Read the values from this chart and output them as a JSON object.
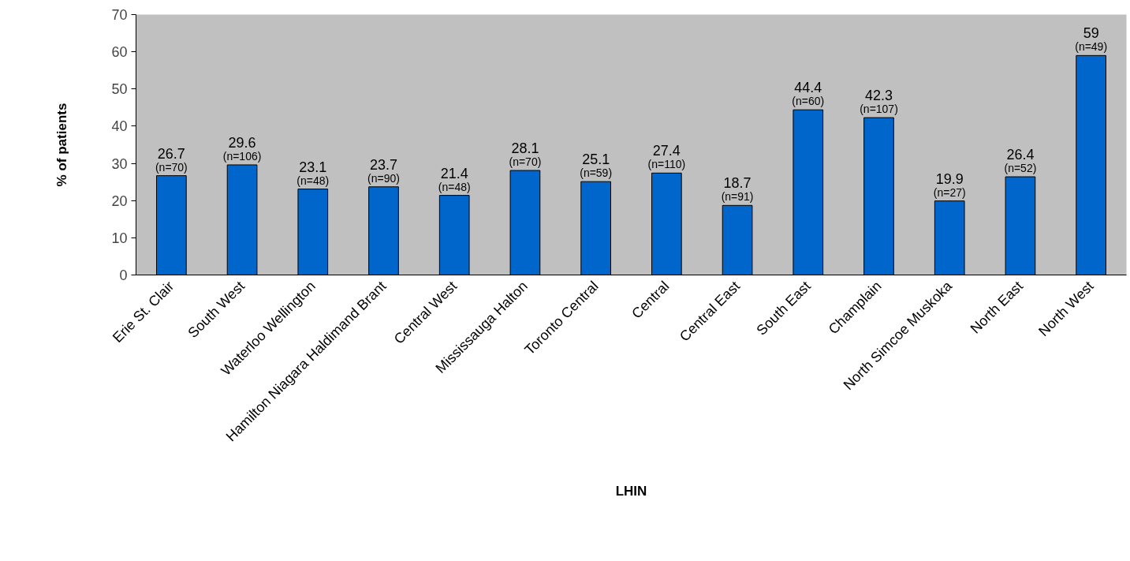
{
  "chart_data": {
    "type": "bar",
    "xlabel": "LHIN",
    "ylabel": "% of patients",
    "categories": [
      "Erie St. Clair",
      "South West",
      "Waterloo Wellington",
      "Hamilton Niagara Haldimand Brant",
      "Central West",
      "Mississauga Halton",
      "Toronto Central",
      "Central",
      "Central East",
      "South East",
      "Champlain",
      "North Simcoe Muskoka",
      "North East",
      "North West"
    ],
    "values": [
      26.7,
      29.6,
      23.1,
      23.7,
      21.4,
      28.1,
      25.1,
      27.4,
      18.7,
      44.4,
      42.3,
      19.9,
      26.4,
      59
    ],
    "color": "#0066cc",
    "ylim": [
      0,
      70
    ],
    "yticks": [
      0,
      10,
      20,
      30,
      40,
      50,
      60,
      70
    ],
    "data_labels": true,
    "annotations": [
      {
        "text": "(n=70)",
        "x": "Erie St. Clair",
        "y": 26.7
      },
      {
        "text": "(n=106)",
        "x": "South West",
        "y": 29.6
      },
      {
        "text": "(n=48)",
        "x": "Waterloo Wellington",
        "y": 23.1
      },
      {
        "text": "(n=90)",
        "x": "Hamilton Niagara Haldimand Brant",
        "y": 23.7
      },
      {
        "text": "(n=48)",
        "x": "Central West",
        "y": 21.4
      },
      {
        "text": "(n=70)",
        "x": "Mississauga Halton",
        "y": 28.1
      },
      {
        "text": "(n=59)",
        "x": "Toronto Central",
        "y": 25.1
      },
      {
        "text": "(n=110)",
        "x": "Central",
        "y": 27.4
      },
      {
        "text": "(n=91)",
        "x": "Central East",
        "y": 18.7
      },
      {
        "text": "(n=60)",
        "x": "South East",
        "y": 44.4
      },
      {
        "text": "(n=107)",
        "x": "Champlain",
        "y": 42.3
      },
      {
        "text": "(n=27)",
        "x": "North Simcoe Muskoka",
        "y": 19.9
      },
      {
        "text": "(n=52)",
        "x": "North East",
        "y": 26.4
      },
      {
        "text": "(n=49)",
        "x": "North West",
        "y": 59
      }
    ]
  }
}
